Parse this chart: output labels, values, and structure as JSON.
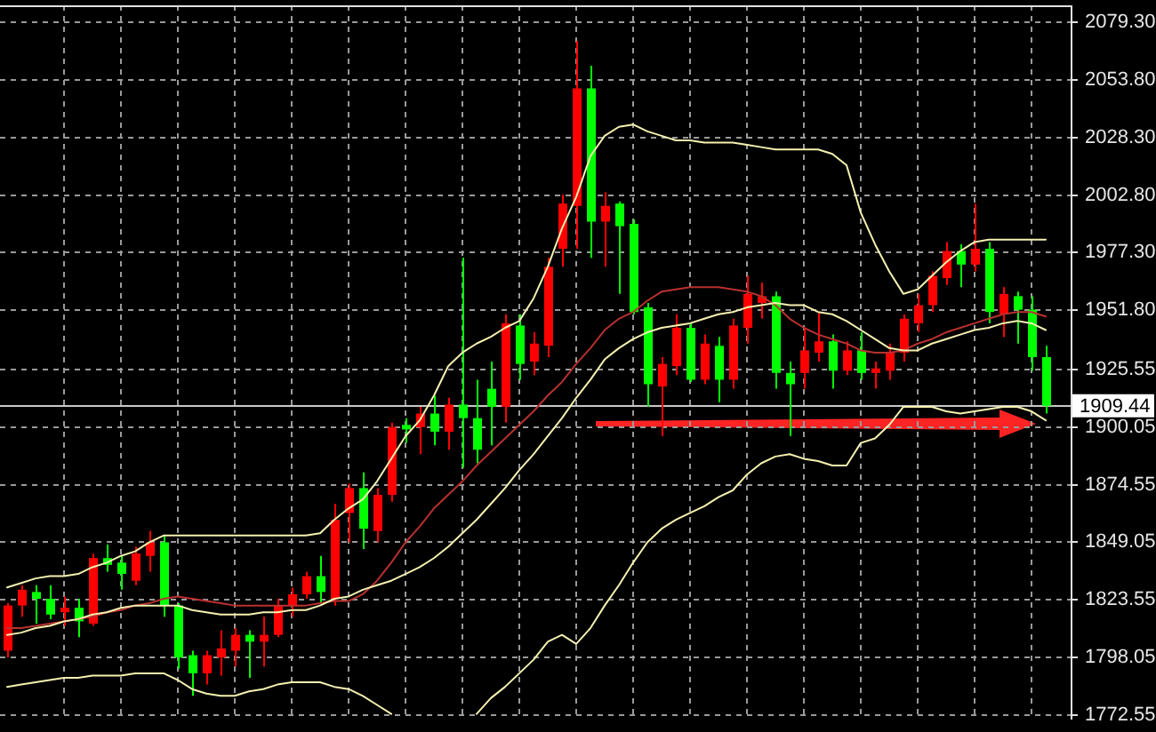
{
  "chart_data": {
    "type": "candlestick",
    "categories": [
      null,
      null,
      null,
      null,
      null,
      null,
      null,
      null,
      null,
      null,
      null,
      null,
      null,
      null,
      null,
      null,
      null,
      null,
      null,
      null,
      null,
      null,
      null,
      null,
      null,
      null,
      null,
      null,
      null,
      null,
      null,
      null,
      null,
      null,
      null,
      null,
      null,
      null,
      null,
      null,
      null,
      null,
      null,
      null,
      null,
      null,
      null,
      null,
      null,
      null,
      null,
      null,
      null,
      null,
      null,
      null,
      null,
      null,
      null,
      null,
      null,
      null,
      null,
      null,
      null,
      null,
      null,
      null,
      null,
      null,
      null,
      null,
      null,
      null
    ],
    "ohlc": [
      [
        1801,
        1822,
        1798,
        1821
      ],
      [
        1821,
        1830,
        1816,
        1828
      ],
      [
        1827,
        1830,
        1813,
        1824
      ],
      [
        1824,
        1830,
        1815,
        1817
      ],
      [
        1818,
        1825,
        1812,
        1820
      ],
      [
        1820,
        1824,
        1807,
        1814
      ],
      [
        1813,
        1844,
        1812,
        1842
      ],
      [
        1842,
        1848,
        1836,
        1839
      ],
      [
        1840,
        1843,
        1828,
        1835
      ],
      [
        1832,
        1847,
        1830,
        1844
      ],
      [
        1843,
        1854,
        1836,
        1849
      ],
      [
        1849,
        1852,
        1816,
        1821
      ],
      [
        1821,
        1822,
        1793,
        1798
      ],
      [
        1799,
        1801,
        1781,
        1791
      ],
      [
        1791,
        1801,
        1786,
        1799
      ],
      [
        1798,
        1810,
        1790,
        1802
      ],
      [
        1801,
        1811,
        1794,
        1808
      ],
      [
        1808,
        1810,
        1789,
        1805
      ],
      [
        1805,
        1816,
        1794,
        1808
      ],
      [
        1808,
        1824,
        1807,
        1821
      ],
      [
        1821,
        1829,
        1816,
        1826
      ],
      [
        1826,
        1836,
        1824,
        1834
      ],
      [
        1834,
        1843,
        1822,
        1827
      ],
      [
        1824,
        1866,
        1821,
        1859
      ],
      [
        1862,
        1875,
        1849,
        1873
      ],
      [
        1873,
        1880,
        1846,
        1855
      ],
      [
        1854,
        1873,
        1849,
        1870
      ],
      [
        1870,
        1902,
        1867,
        1900
      ],
      [
        1901,
        1904,
        1893,
        1899
      ],
      [
        1900,
        1909,
        1888,
        1906
      ],
      [
        1906,
        1914,
        1892,
        1898
      ],
      [
        1898,
        1913,
        1890,
        1910
      ],
      [
        1910,
        1975,
        1882,
        1904
      ],
      [
        1904,
        1921,
        1884,
        1890
      ],
      [
        1917,
        1929,
        1892,
        1909
      ],
      [
        1909,
        1950,
        1902,
        1946
      ],
      [
        1945,
        1950,
        1921,
        1928
      ],
      [
        1929,
        1942,
        1923,
        1937
      ],
      [
        1936,
        1975,
        1931,
        1971
      ],
      [
        1979,
        2003,
        1971,
        1999
      ],
      [
        1998,
        2071,
        1979,
        2050
      ],
      [
        2050,
        2060,
        1975,
        1991
      ],
      [
        1991,
        2004,
        1971,
        1998
      ],
      [
        1999,
        2000,
        1959,
        1989
      ],
      [
        1990,
        1992,
        1950,
        1951
      ],
      [
        1953,
        1955,
        1909,
        1919
      ],
      [
        1918,
        1931,
        1896,
        1928
      ],
      [
        1927,
        1950,
        1923,
        1944
      ],
      [
        1944,
        1946,
        1920,
        1921
      ],
      [
        1921,
        1941,
        1919,
        1937
      ],
      [
        1936,
        1940,
        1911,
        1921
      ],
      [
        1921,
        1948,
        1917,
        1945
      ],
      [
        1944,
        1967,
        1937,
        1959
      ],
      [
        1955,
        1964,
        1948,
        1958
      ],
      [
        1958,
        1960,
        1917,
        1924
      ],
      [
        1924,
        1929,
        1896,
        1919
      ],
      [
        1924,
        1944,
        1917,
        1934
      ],
      [
        1933,
        1951,
        1929,
        1938
      ],
      [
        1938,
        1941,
        1917,
        1925
      ],
      [
        1925,
        1938,
        1923,
        1934
      ],
      [
        1934,
        1942,
        1921,
        1924
      ],
      [
        1924,
        1929,
        1917,
        1926
      ],
      [
        1925,
        1937,
        1921,
        1933
      ],
      [
        1933,
        1950,
        1929,
        1948
      ],
      [
        1946,
        1959,
        1942,
        1954
      ],
      [
        1954,
        1969,
        1951,
        1967
      ],
      [
        1966,
        1982,
        1963,
        1978
      ],
      [
        1978,
        1981,
        1962,
        1972
      ],
      [
        1972,
        1999,
        1969,
        1979
      ],
      [
        1979,
        1982,
        1946,
        1951
      ],
      [
        1950,
        1962,
        1940,
        1959
      ],
      [
        1958,
        1960,
        1937,
        1952
      ],
      [
        1952,
        1958,
        1925,
        1931
      ],
      [
        1931,
        1936,
        1906,
        1909.44
      ]
    ],
    "colors": [
      "#ff0000",
      "#ff0000",
      "#00ff00",
      "#00ff00",
      "#ff0000",
      "#00ff00",
      "#ff0000",
      "#00ff00",
      "#00ff00",
      "#ff0000",
      "#ff0000",
      "#00ff00",
      "#00ff00",
      "#00ff00",
      "#ff0000",
      "#ff0000",
      "#ff0000",
      "#00ff00",
      "#ff0000",
      "#ff0000",
      "#ff0000",
      "#ff0000",
      "#00ff00",
      "#ff0000",
      "#ff0000",
      "#00ff00",
      "#ff0000",
      "#ff0000",
      "#00ff00",
      "#ff0000",
      "#00ff00",
      "#ff0000",
      "#00ff00",
      "#00ff00",
      "#00ff00",
      "#ff0000",
      "#00ff00",
      "#ff0000",
      "#ff0000",
      "#ff0000",
      "#ff0000",
      "#00ff00",
      "#ff0000",
      "#00ff00",
      "#00ff00",
      "#00ff00",
      "#ff0000",
      "#ff0000",
      "#00ff00",
      "#ff0000",
      "#00ff00",
      "#ff0000",
      "#ff0000",
      "#ff0000",
      "#00ff00",
      "#00ff00",
      "#ff0000",
      "#ff0000",
      "#00ff00",
      "#ff0000",
      "#00ff00",
      "#ff0000",
      "#ff0000",
      "#ff0000",
      "#ff0000",
      "#ff0000",
      "#ff0000",
      "#00ff00",
      "#ff0000",
      "#00ff00",
      "#ff0000",
      "#00ff00",
      "#00ff00",
      "#00ff00"
    ],
    "series": [
      {
        "type": "line",
        "color": "#f4f1b0",
        "values": [
          1829,
          1831,
          1833,
          1834,
          1834,
          1835,
          1838,
          1840,
          1843,
          1845,
          1849,
          1852,
          1852,
          1852,
          1852,
          1852,
          1852,
          1852,
          1852,
          1852,
          1852,
          1852,
          1853,
          1859,
          1864,
          1868,
          1876,
          1886,
          1896,
          1903,
          1914,
          1927,
          1933,
          1937,
          1940,
          1944,
          1947,
          1957,
          1971,
          1988,
          2002,
          2020,
          2029,
          2033,
          2034,
          2031,
          2029,
          2027,
          2027,
          2026,
          2026,
          2026,
          2025,
          2024,
          2023,
          2023,
          2023,
          2023,
          2021,
          2016,
          1995,
          1981,
          1969,
          1959,
          1961,
          1967,
          1973,
          1978,
          1982,
          1983,
          1983,
          1983,
          1983,
          1983
        ]
      },
      {
        "type": "line",
        "color": "#f4f1b0",
        "values": [
          1808,
          1809,
          1811,
          1812,
          1814,
          1815,
          1817,
          1818,
          1820,
          1821,
          1821,
          1821,
          1821,
          1819,
          1818,
          1817,
          1817,
          1817,
          1818,
          1818,
          1819,
          1819,
          1821,
          1824,
          1825,
          1828,
          1830,
          1832,
          1835,
          1838,
          1842,
          1847,
          1853,
          1859,
          1866,
          1873,
          1881,
          1888,
          1896,
          1904,
          1913,
          1921,
          1930,
          1935,
          1939,
          1942,
          1944,
          1945,
          1946,
          1948,
          1950,
          1951,
          1953,
          1954,
          1955,
          1954,
          1954,
          1951,
          1950,
          1947,
          1943,
          1939,
          1935,
          1934,
          1934,
          1937,
          1939,
          1941,
          1943,
          1944,
          1946,
          1947,
          1946,
          1943
        ]
      },
      {
        "type": "line",
        "color": "#f4f1b0",
        "values": [
          1785,
          1786,
          1787,
          1788,
          1789,
          1789,
          1790,
          1790,
          1790,
          1791,
          1791,
          1791,
          1788,
          1784,
          1782,
          1781,
          1781,
          1783,
          1784,
          1786,
          1787,
          1787,
          1787,
          1785,
          1784,
          1781,
          1777,
          1773,
          null,
          null,
          null,
          null,
          null,
          1773,
          1780,
          1785,
          1791,
          1797,
          1805,
          1808,
          1804,
          1811,
          1821,
          1830,
          1840,
          1849,
          1855,
          1859,
          1862,
          1865,
          1869,
          1872,
          1879,
          1884,
          1887,
          1888,
          1886,
          1885,
          1883,
          1883,
          1893,
          1895,
          1901,
          1909,
          1909,
          1909,
          1907,
          1906,
          1907,
          1908,
          1909,
          1909,
          1907,
          1903
        ]
      },
      {
        "type": "line",
        "color": "#b8312f",
        "values": [
          1811,
          1811,
          1812,
          1813,
          1814,
          1815,
          1816,
          1818,
          1819,
          1821,
          1822,
          1824,
          1825,
          1824,
          1823,
          1822,
          1821,
          1821,
          1821,
          1821,
          1821,
          1821,
          1822,
          1823,
          1823,
          1826,
          1832,
          1840,
          1849,
          1856,
          1864,
          1870,
          1876,
          1883,
          1889,
          1895,
          1901,
          1907,
          1914,
          1920,
          1928,
          1935,
          1943,
          1948,
          1951,
          1956,
          1960,
          1961,
          1962,
          1962,
          1962,
          1961,
          1960,
          1958,
          1954,
          1948,
          1944,
          1941,
          1939,
          1937,
          1934,
          1933,
          1933,
          1934,
          1937,
          1939,
          1942,
          1944,
          1946,
          1948,
          1950,
          1951,
          1951,
          1949
        ]
      }
    ],
    "ylim": [
      1770.5,
      2086.8
    ],
    "yticks": [
      {
        "value": 2079.3,
        "label": "2079.30"
      },
      {
        "value": 2053.8,
        "label": "2053.80"
      },
      {
        "value": 2028.3,
        "label": "2028.30"
      },
      {
        "value": 2002.8,
        "label": "2002.80"
      },
      {
        "value": 1977.3,
        "label": "1977.30"
      },
      {
        "value": 1951.8,
        "label": "1951.80"
      },
      {
        "value": 1925.55,
        "label": "1925.55"
      },
      {
        "value": 1900.05,
        "label": "1900.05"
      },
      {
        "value": 1874.55,
        "label": "1874.55"
      },
      {
        "value": 1849.05,
        "label": "1849.05"
      },
      {
        "value": 1823.55,
        "label": "1823.55"
      },
      {
        "value": 1798.05,
        "label": "1798.05"
      },
      {
        "value": 1772.55,
        "label": "1772.55"
      }
    ],
    "grid": true,
    "tick_labels": "y",
    "ref_lines": [
      {
        "axis": "y",
        "value": 1909.44,
        "label": "1909.44",
        "color": "#c8c8c8"
      }
    ]
  }
}
